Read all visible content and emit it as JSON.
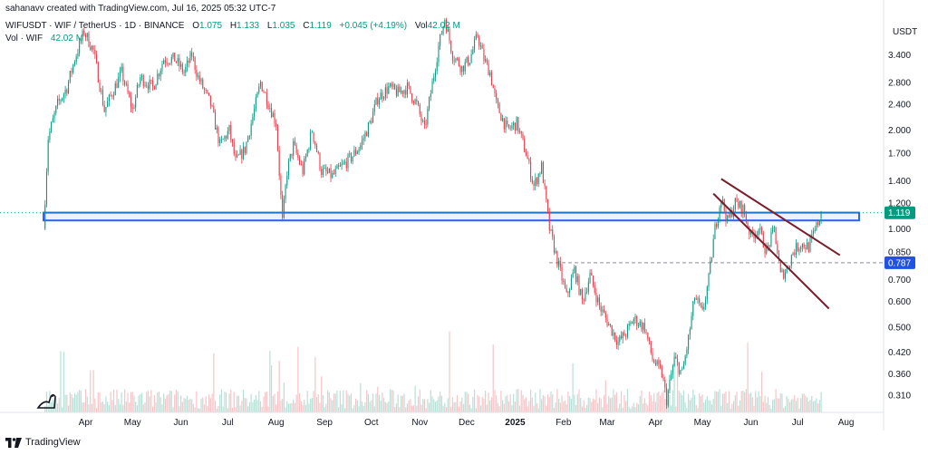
{
  "attribution": "sahanavv created with TradingView.com, Jul 16, 2025 05:32 UTC-7",
  "legend": {
    "symbol": "WIFUSDT · WIF / TetherUS · 1D · BINANCE",
    "o_label": "O",
    "o_value": "1.075",
    "h_label": "H",
    "h_value": "1.133",
    "l_label": "L",
    "l_value": "1.035",
    "c_label": "C",
    "c_value": "1.119",
    "change": "+0.045 (+4.19%)",
    "vol_label": "Vol",
    "vol_value": "42.02 M",
    "vol_row_label": "Vol · WIF",
    "vol_row_value": "42.02 M"
  },
  "axis": {
    "currency": "USDT",
    "price_ticks": [
      "3.400",
      "2.800",
      "2.400",
      "2.000",
      "1.700",
      "1.400",
      "1.200",
      "1.000",
      "0.850",
      "0.700",
      "0.600",
      "0.500",
      "0.420",
      "0.360",
      "0.310"
    ],
    "month_labels": [
      "Apr",
      "May",
      "Jun",
      "Jul",
      "Aug",
      "Sep",
      "Oct",
      "Nov",
      "Dec",
      "2025",
      "Feb",
      "Mar",
      "Apr",
      "May",
      "Jun",
      "Jul",
      "Aug"
    ]
  },
  "price_badges": {
    "current": "1.119",
    "dashed_level": "0.787"
  },
  "footer": "TradingView",
  "colors": {
    "up": "#089981",
    "down": "#f23645",
    "up_light": "#b7e1d7",
    "down_light": "#f7c5c8",
    "zone_border": "#2962ff",
    "zone_fill": "#dde7fb",
    "wedge_line": "#7a1e2c",
    "badge_current": "#089981",
    "badge_level": "#1e53e5"
  },
  "chart_data": {
    "type": "candlestick",
    "title": "WIFUSDT · WIF / TetherUS · 1D · BINANCE",
    "scale": "log",
    "ylim": [
      0.28,
      4.4
    ],
    "x_range": [
      "2024-03-05",
      "2025-08-25"
    ],
    "last_candle": {
      "date": "2025-07-16",
      "open": 1.075,
      "high": 1.133,
      "low": 1.035,
      "close": 1.119
    },
    "annotations": {
      "support_zone": [
        1.06,
        1.12
      ],
      "dashed_level": 0.787,
      "falling_wedge": {
        "upper": [
          [
            "2025-05-13",
            1.42
          ],
          [
            "2025-07-28",
            0.83
          ]
        ],
        "lower": [
          [
            "2025-05-08",
            1.28
          ],
          [
            "2025-07-21",
            0.57
          ]
        ]
      }
    },
    "anchors": [
      [
        "2024-03-05",
        1.0
      ],
      [
        "2024-03-08",
        1.9
      ],
      [
        "2024-03-14",
        2.4
      ],
      [
        "2024-03-20",
        2.7
      ],
      [
        "2024-03-25",
        3.3
      ],
      [
        "2024-03-31",
        4.0
      ],
      [
        "2024-04-06",
        3.5
      ],
      [
        "2024-04-13",
        2.3
      ],
      [
        "2024-04-18",
        2.6
      ],
      [
        "2024-04-24",
        3.0
      ],
      [
        "2024-05-01",
        2.3
      ],
      [
        "2024-05-06",
        2.9
      ],
      [
        "2024-05-14",
        2.7
      ],
      [
        "2024-05-21",
        3.3
      ],
      [
        "2024-05-28",
        3.3
      ],
      [
        "2024-06-03",
        3.0
      ],
      [
        "2024-06-08",
        3.4
      ],
      [
        "2024-06-12",
        2.9
      ],
      [
        "2024-06-20",
        2.4
      ],
      [
        "2024-06-26",
        1.8
      ],
      [
        "2024-07-02",
        2.0
      ],
      [
        "2024-07-06",
        1.6
      ],
      [
        "2024-07-12",
        1.75
      ],
      [
        "2024-07-18",
        2.3
      ],
      [
        "2024-07-22",
        2.8
      ],
      [
        "2024-07-26",
        2.5
      ],
      [
        "2024-08-01",
        2.1
      ],
      [
        "2024-08-05",
        1.05
      ],
      [
        "2024-08-08",
        1.5
      ],
      [
        "2024-08-12",
        1.8
      ],
      [
        "2024-08-18",
        1.5
      ],
      [
        "2024-08-24",
        2.0
      ],
      [
        "2024-08-30",
        1.5
      ],
      [
        "2024-09-06",
        1.45
      ],
      [
        "2024-09-12",
        1.55
      ],
      [
        "2024-09-18",
        1.65
      ],
      [
        "2024-09-24",
        1.8
      ],
      [
        "2024-09-30",
        2.1
      ],
      [
        "2024-10-05",
        2.5
      ],
      [
        "2024-10-12",
        2.7
      ],
      [
        "2024-10-18",
        2.6
      ],
      [
        "2024-10-24",
        2.7
      ],
      [
        "2024-10-30",
        2.4
      ],
      [
        "2024-11-04",
        2.0
      ],
      [
        "2024-11-08",
        2.6
      ],
      [
        "2024-11-13",
        3.6
      ],
      [
        "2024-11-17",
        4.4
      ],
      [
        "2024-11-22",
        3.4
      ],
      [
        "2024-11-28",
        3.1
      ],
      [
        "2024-12-03",
        3.3
      ],
      [
        "2024-12-08",
        3.9
      ],
      [
        "2024-12-12",
        3.3
      ],
      [
        "2024-12-16",
        3.0
      ],
      [
        "2024-12-20",
        2.4
      ],
      [
        "2024-12-27",
        2.0
      ],
      [
        "2025-01-02",
        2.1
      ],
      [
        "2025-01-08",
        1.7
      ],
      [
        "2025-01-13",
        1.35
      ],
      [
        "2025-01-18",
        1.55
      ],
      [
        "2025-01-23",
        1.0
      ],
      [
        "2025-01-28",
        0.8
      ],
      [
        "2025-02-03",
        0.62
      ],
      [
        "2025-02-08",
        0.75
      ],
      [
        "2025-02-13",
        0.6
      ],
      [
        "2025-02-18",
        0.72
      ],
      [
        "2025-02-24",
        0.58
      ],
      [
        "2025-03-03",
        0.5
      ],
      [
        "2025-03-08",
        0.45
      ],
      [
        "2025-03-13",
        0.48
      ],
      [
        "2025-03-18",
        0.53
      ],
      [
        "2025-03-25",
        0.5
      ],
      [
        "2025-03-30",
        0.4
      ],
      [
        "2025-04-05",
        0.36
      ],
      [
        "2025-04-08",
        0.3
      ],
      [
        "2025-04-13",
        0.4
      ],
      [
        "2025-04-18",
        0.36
      ],
      [
        "2025-04-22",
        0.46
      ],
      [
        "2025-04-26",
        0.62
      ],
      [
        "2025-05-01",
        0.55
      ],
      [
        "2025-05-05",
        0.7
      ],
      [
        "2025-05-09",
        1.0
      ],
      [
        "2025-05-13",
        1.25
      ],
      [
        "2025-05-17",
        1.05
      ],
      [
        "2025-05-22",
        1.2
      ],
      [
        "2025-05-27",
        1.15
      ],
      [
        "2025-06-01",
        0.95
      ],
      [
        "2025-06-06",
        1.0
      ],
      [
        "2025-06-11",
        0.85
      ],
      [
        "2025-06-16",
        1.0
      ],
      [
        "2025-06-20",
        0.72
      ],
      [
        "2025-06-24",
        0.75
      ],
      [
        "2025-06-28",
        0.85
      ],
      [
        "2025-07-03",
        0.9
      ],
      [
        "2025-07-08",
        0.88
      ],
      [
        "2025-07-12",
        0.98
      ],
      [
        "2025-07-16",
        1.119
      ]
    ]
  }
}
